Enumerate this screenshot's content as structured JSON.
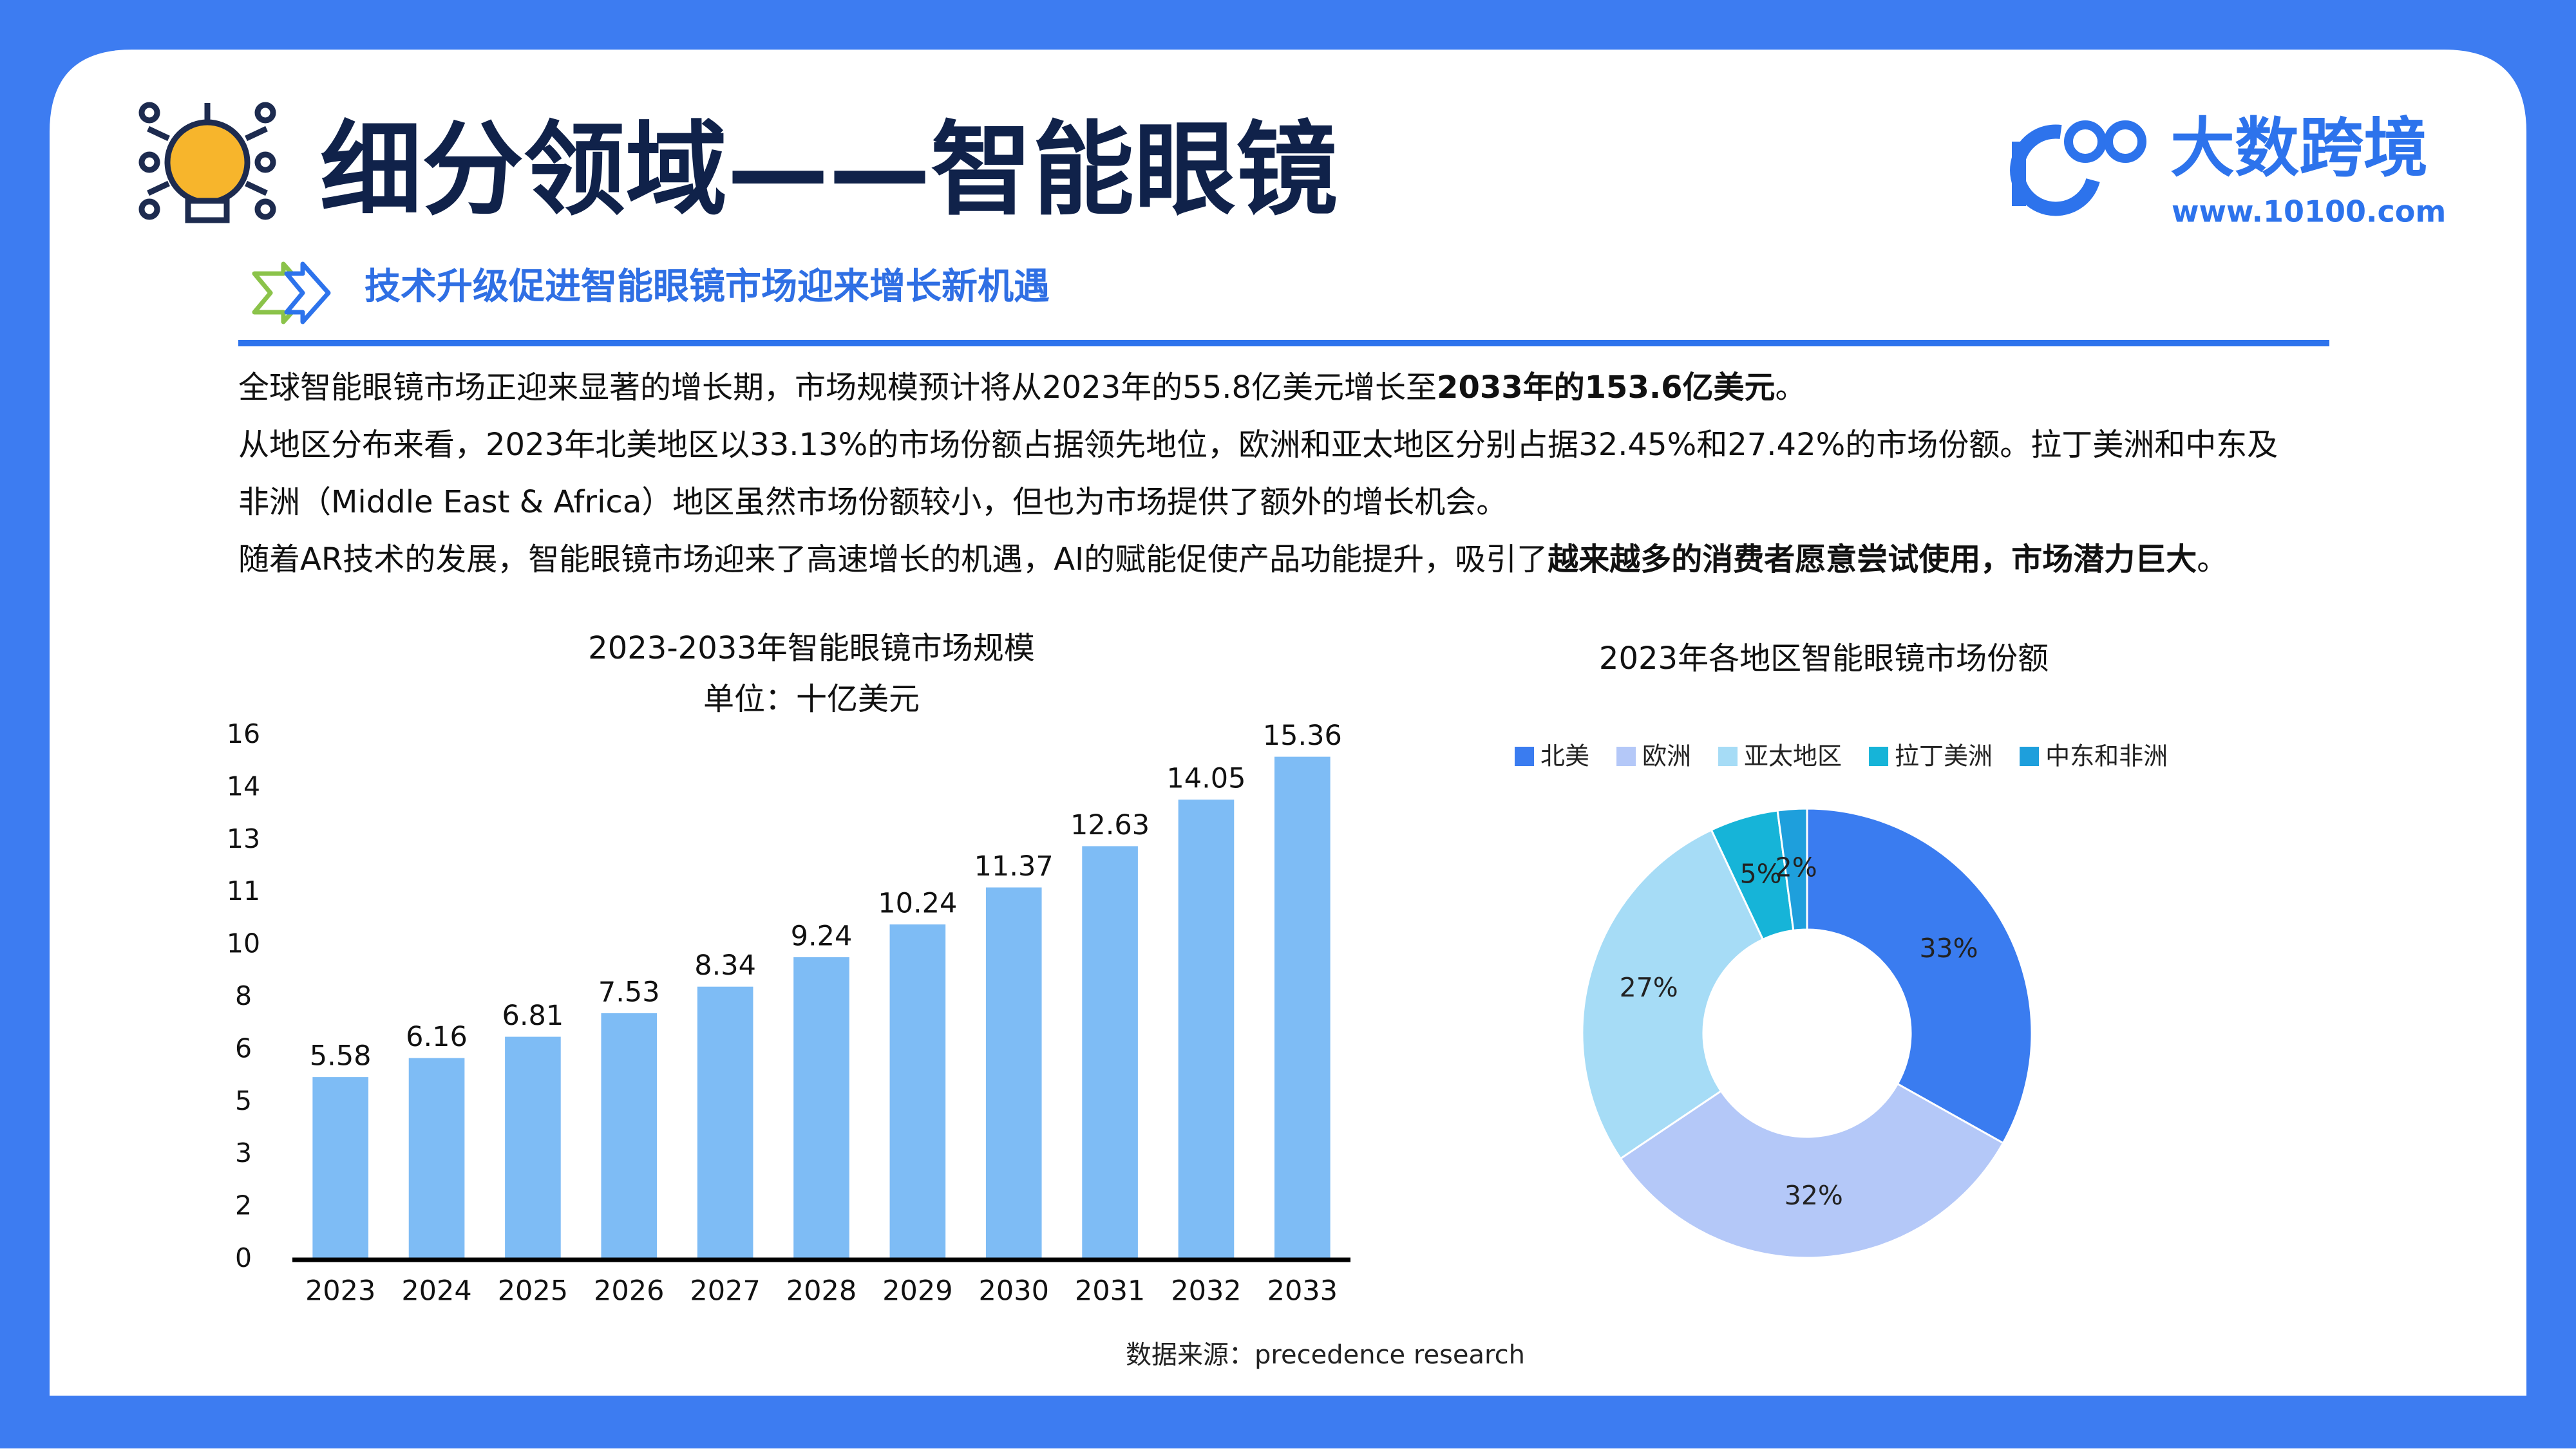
{
  "header": {
    "title": "细分领域——智能眼镜",
    "logo_name": "大数跨境",
    "logo_url": "www.10100.com",
    "subtitle": "技术升级促进智能眼镜市场迎来增长新机遇"
  },
  "body_lines": [
    [
      {
        "text": "全球智能眼镜市场正迎来显著的增长期，市场规模预计将从2023年的55.8亿美元增长至",
        "bold": false
      },
      {
        "text": "2033年的153.6亿美元",
        "bold": true
      },
      {
        "text": "。",
        "bold": false
      }
    ],
    [
      {
        "text": "从地区分布来看，2023年北美地区以33.13%的市场份额占据领先地位，欧洲和亚太地区分别占据32.45%和27.42%的市场份额。拉丁美洲和中东及",
        "bold": false
      }
    ],
    [
      {
        "text": "非洲（Middle East & Africa）地区虽然市场份额较小，但也为市场提供了额外的增长机会。",
        "bold": false
      }
    ],
    [
      {
        "text": "随着AR技术的发展，智能眼镜市场迎来了高速增长的机遇，AI的赋能促使产品功能提升，吸引了",
        "bold": false
      },
      {
        "text": "越来越多的消费者愿意尝试使用，市场潜力巨大",
        "bold": true
      },
      {
        "text": "。",
        "bold": false
      }
    ]
  ],
  "chart_data": [
    {
      "type": "bar",
      "title": "2023-2033年智能眼镜市场规模",
      "subtitle": "单位：十亿美元",
      "categories": [
        "2023",
        "2024",
        "2025",
        "2026",
        "2027",
        "2028",
        "2029",
        "2030",
        "2031",
        "2032",
        "2033"
      ],
      "values": [
        5.58,
        6.16,
        6.81,
        7.53,
        8.34,
        9.24,
        10.24,
        11.37,
        12.63,
        14.05,
        15.36
      ],
      "color": "#7ebcf5",
      "ylim": [
        0,
        16
      ],
      "yticks": [
        0,
        {
          "value": 1.6,
          "label": "2"
        },
        {
          "value": 3.2,
          "label": "3"
        },
        {
          "value": 4.8,
          "label": "5"
        },
        {
          "value": 6.4,
          "label": "6"
        },
        8,
        {
          "value": 9.6,
          "label": "10"
        },
        {
          "value": 11.2,
          "label": "11"
        },
        {
          "value": 12.8,
          "label": "13"
        },
        {
          "value": 14.4,
          "label": "14"
        },
        16
      ],
      "grid": false
    },
    {
      "type": "pie",
      "title": "2023年各地区智能眼镜市场份额",
      "donut": true,
      "legend": "top",
      "categories": [
        "北美",
        "欧洲",
        "亚太地区",
        "拉丁美洲",
        "中东和非洲"
      ],
      "values": [
        33.13,
        32.45,
        27.42,
        4.9,
        2.1
      ],
      "value_labels": [
        "33%",
        "32%",
        "27%",
        "5%",
        "2%"
      ],
      "colors": [
        "#3a7cf0",
        "#b4c8f8",
        "#a6dcf6",
        "#16b4d8",
        "#1e9fdc"
      ]
    }
  ],
  "source": "数据来源：precedence research"
}
